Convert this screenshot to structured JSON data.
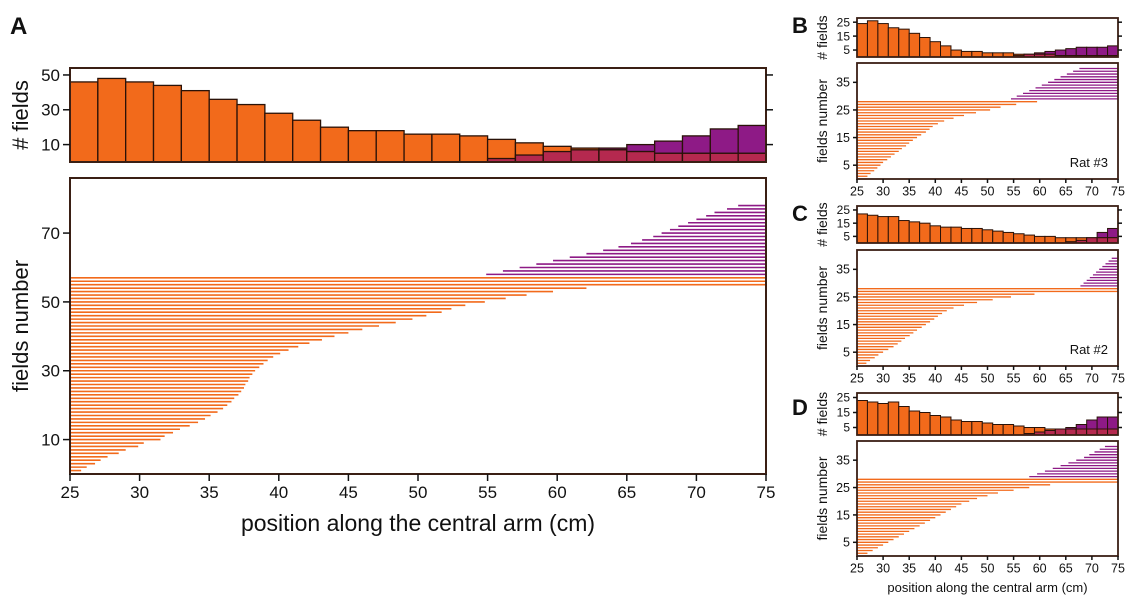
{
  "figure": {
    "colors": {
      "orange": "#f26a1b",
      "purple": "#8e1a86",
      "overlap": "#b5294f",
      "frame": "#3a1f14"
    },
    "x_axis_label_main": "position along the central arm (cm)",
    "x_axis_label_small": "position along the central arm (cm)"
  },
  "chart_data": [
    {
      "panel": "A",
      "type": "bar",
      "role": "histogram",
      "ylabel": "# fields",
      "xlim": [
        25,
        75
      ],
      "ylim": [
        0,
        54
      ],
      "yticks": [
        10,
        30,
        50
      ],
      "bins": [
        25,
        27,
        29,
        31,
        33,
        35,
        37,
        39,
        41,
        43,
        45,
        47,
        49,
        51,
        53,
        55,
        57,
        59,
        61,
        63,
        65,
        67,
        69,
        71,
        73
      ],
      "bin_width": 2,
      "series": [
        {
          "color": "orange",
          "values": [
            46,
            48,
            46,
            44,
            41,
            36,
            33,
            28,
            24,
            20,
            18,
            18,
            16,
            16,
            15,
            13,
            11,
            9,
            8,
            7,
            6,
            5,
            5,
            5,
            5
          ]
        },
        {
          "color": "purple",
          "values": [
            0,
            0,
            0,
            0,
            0,
            0,
            0,
            0,
            0,
            0,
            0,
            0,
            0,
            0,
            0,
            2,
            4,
            6,
            7,
            8,
            10,
            12,
            15,
            19,
            21
          ]
        }
      ]
    },
    {
      "panel": "A",
      "type": "bar",
      "role": "fields",
      "xlabel": "position along the central arm (cm)",
      "ylabel": "fields number",
      "xlim": [
        25,
        75
      ],
      "ylim": [
        0,
        86
      ],
      "xticks": [
        25,
        30,
        35,
        40,
        45,
        50,
        55,
        60,
        65,
        70,
        75
      ],
      "yticks": [
        10,
        30,
        50,
        70
      ],
      "n_orange": 57,
      "n_purple": 21,
      "orange_right_edges": [
        25.8,
        26.2,
        26.8,
        27.2,
        27.7,
        28.5,
        29.0,
        29.9,
        30.3,
        31.5,
        31.8,
        32.4,
        32.9,
        33.6,
        34.2,
        34.7,
        35.1,
        35.6,
        36.0,
        36.3,
        36.6,
        36.8,
        37.1,
        37.3,
        37.5,
        37.6,
        37.8,
        37.9,
        38.1,
        38.3,
        38.6,
        38.9,
        39.2,
        39.6,
        40.1,
        40.7,
        41.4,
        42.2,
        43.1,
        44.0,
        45.0,
        46.0,
        47.2,
        48.4,
        49.6,
        50.6,
        51.7,
        52.4,
        53.4,
        54.8,
        56.3,
        57.8,
        59.7,
        62.1,
        75.0,
        75.0,
        75.0
      ],
      "orange_left_edges": [
        25,
        25,
        25,
        25,
        25,
        25,
        25,
        25,
        25,
        25,
        25,
        25,
        25,
        25,
        25,
        25,
        25,
        25,
        25,
        25,
        25,
        25,
        25,
        25,
        25,
        25,
        25,
        25,
        25,
        25,
        25,
        25,
        25,
        25,
        25,
        25,
        25,
        25,
        25,
        25,
        25,
        25,
        25,
        25,
        25,
        25,
        25,
        25,
        25,
        25,
        25,
        25,
        25,
        25,
        25,
        25,
        25
      ],
      "purple_left_edges": [
        54.9,
        56.1,
        57.3,
        58.5,
        59.7,
        60.9,
        62.1,
        63.3,
        64.4,
        65.3,
        66.1,
        66.9,
        67.5,
        68.1,
        68.7,
        69.4,
        70.0,
        70.7,
        71.3,
        72.2,
        73.0
      ],
      "purple_right_edge": 75
    },
    {
      "panel": "B",
      "type": "bar",
      "role": "histogram",
      "ylabel": "# fields",
      "xlim": [
        25,
        75
      ],
      "ylim": [
        0,
        28
      ],
      "yticks": [
        5,
        15,
        25
      ],
      "bins": [
        25,
        27,
        29,
        31,
        33,
        35,
        37,
        39,
        41,
        43,
        45,
        47,
        49,
        51,
        53,
        55,
        57,
        59,
        61,
        63,
        65,
        67,
        69,
        71,
        73
      ],
      "bin_width": 2,
      "series": [
        {
          "color": "orange",
          "values": [
            24,
            26,
            24,
            21,
            20,
            17,
            14,
            11,
            8,
            5,
            4,
            4,
            3,
            3,
            3,
            2,
            2,
            2,
            2,
            1,
            1,
            1,
            1,
            1,
            1
          ]
        },
        {
          "color": "purple",
          "values": [
            0,
            0,
            0,
            0,
            0,
            0,
            0,
            0,
            0,
            0,
            0,
            0,
            0,
            0,
            0,
            1,
            2,
            3,
            4,
            5,
            6,
            7,
            7,
            7,
            8
          ]
        }
      ]
    },
    {
      "panel": "B",
      "type": "bar",
      "role": "fields",
      "ylabel": "fields number",
      "xlim": [
        25,
        75
      ],
      "ylim": [
        0,
        42
      ],
      "xticks": [
        25,
        30,
        35,
        40,
        45,
        50,
        55,
        60,
        65,
        70,
        75
      ],
      "yticks": [
        5,
        15,
        25,
        35
      ],
      "annotation": "Rat #3",
      "n_orange": 28,
      "n_purple": 12,
      "orange_right_edges": [
        27.0,
        27.6,
        28.3,
        28.9,
        29.5,
        30.0,
        30.8,
        31.5,
        32.2,
        33.0,
        33.6,
        34.4,
        35.0,
        35.7,
        36.5,
        37.3,
        38.2,
        38.9,
        39.5,
        40.5,
        41.7,
        43.5,
        45.5,
        47.8,
        50.5,
        52.5,
        55.5,
        59.5
      ],
      "purple_left_edges": [
        54.5,
        55.6,
        56.8,
        58.0,
        59.2,
        60.4,
        61.6,
        62.8,
        64.0,
        65.2,
        66.4,
        67.6
      ],
      "purple_right_edge": 75
    },
    {
      "panel": "C",
      "type": "bar",
      "role": "histogram",
      "ylabel": "# fields",
      "xlim": [
        25,
        75
      ],
      "ylim": [
        0,
        28
      ],
      "yticks": [
        5,
        15,
        25
      ],
      "bins": [
        25,
        27,
        29,
        31,
        33,
        35,
        37,
        39,
        41,
        43,
        45,
        47,
        49,
        51,
        53,
        55,
        57,
        59,
        61,
        63,
        65,
        67,
        69,
        71,
        73
      ],
      "bin_width": 2,
      "series": [
        {
          "color": "orange",
          "values": [
            22,
            21,
            20,
            20,
            17,
            16,
            15,
            13,
            12,
            12,
            11,
            11,
            10,
            9,
            8,
            7,
            6,
            5,
            5,
            4,
            4,
            4,
            4,
            4,
            4
          ]
        },
        {
          "color": "purple",
          "values": [
            0,
            0,
            0,
            0,
            0,
            0,
            0,
            0,
            0,
            0,
            0,
            0,
            0,
            0,
            0,
            0,
            0,
            0,
            0,
            0,
            1,
            2,
            4,
            8,
            11
          ]
        }
      ]
    },
    {
      "panel": "C",
      "type": "bar",
      "role": "fields",
      "ylabel": "fields number",
      "xlim": [
        25,
        75
      ],
      "ylim": [
        0,
        42
      ],
      "xticks": [
        25,
        30,
        35,
        40,
        45,
        50,
        55,
        60,
        65,
        70,
        75
      ],
      "yticks": [
        5,
        15,
        25,
        35
      ],
      "annotation": "Rat #2",
      "n_orange": 28,
      "n_purple": 11,
      "orange_right_edges": [
        26.8,
        27.5,
        28.4,
        29.1,
        30.0,
        31.0,
        32.0,
        32.8,
        33.5,
        34.2,
        35.1,
        35.8,
        36.5,
        37.4,
        38.2,
        39.0,
        39.8,
        40.5,
        41.3,
        42.2,
        43.5,
        45.5,
        48.0,
        51.0,
        54.5,
        59.0,
        75.0,
        75.0
      ],
      "purple_left_edges": [
        67.8,
        68.4,
        69.0,
        69.6,
        70.2,
        70.8,
        71.4,
        72.0,
        72.6,
        73.2,
        73.8
      ],
      "purple_right_edge": 75
    },
    {
      "panel": "D",
      "type": "bar",
      "role": "histogram",
      "ylabel": "# fields",
      "xlim": [
        25,
        75
      ],
      "ylim": [
        0,
        28
      ],
      "yticks": [
        5,
        15,
        25
      ],
      "bins": [
        25,
        27,
        29,
        31,
        33,
        35,
        37,
        39,
        41,
        43,
        45,
        47,
        49,
        51,
        53,
        55,
        57,
        59,
        61,
        63,
        65,
        67,
        69,
        71,
        73
      ],
      "bin_width": 2,
      "series": [
        {
          "color": "orange",
          "values": [
            23,
            22,
            21,
            22,
            19,
            16,
            15,
            13,
            12,
            10,
            9,
            9,
            8,
            7,
            7,
            6,
            5,
            5,
            4,
            4,
            4,
            4,
            4,
            4,
            4
          ]
        },
        {
          "color": "purple",
          "values": [
            0,
            0,
            0,
            0,
            0,
            0,
            0,
            0,
            0,
            0,
            0,
            0,
            0,
            0,
            0,
            0,
            1,
            2,
            3,
            4,
            5,
            7,
            10,
            12,
            12
          ]
        }
      ]
    },
    {
      "panel": "D",
      "type": "bar",
      "role": "fields",
      "xlabel": "position along the central arm (cm)",
      "ylabel": "fields number",
      "xlim": [
        25,
        75
      ],
      "ylim": [
        0,
        42
      ],
      "xticks": [
        25,
        30,
        35,
        40,
        45,
        50,
        55,
        60,
        65,
        70,
        75
      ],
      "yticks": [
        5,
        15,
        25,
        35
      ],
      "n_orange": 28,
      "n_purple": 12,
      "orange_right_edges": [
        27.0,
        28.0,
        29.0,
        30.0,
        31.0,
        32.0,
        33.0,
        34.0,
        35.0,
        36.0,
        37.0,
        38.0,
        39.0,
        40.0,
        41.0,
        42.0,
        43.0,
        44.0,
        45.0,
        46.5,
        48.0,
        50.0,
        52.0,
        55.0,
        58.0,
        62.0,
        75.0,
        75.0
      ],
      "purple_left_edges": [
        58.0,
        59.5,
        61.0,
        62.5,
        64.0,
        65.5,
        67.0,
        68.5,
        69.5,
        70.5,
        71.5,
        72.5
      ],
      "purple_right_edge": 75
    }
  ]
}
